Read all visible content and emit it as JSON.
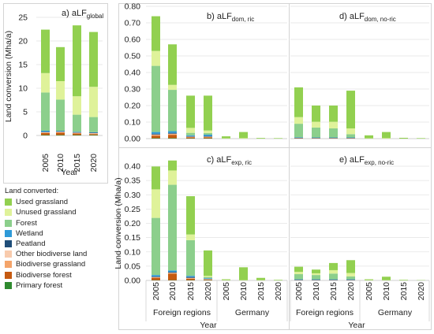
{
  "categories_short": [
    "2005",
    "2010",
    "2015",
    "2020"
  ],
  "colors": {
    "used_grassland": "#92d050",
    "unused_grassland": "#dff29a",
    "forest": "#8ccf8c",
    "wetland": "#2e9ad8",
    "peatland": "#1f4e79",
    "other_biodiverse_land": "#f8cbad",
    "biodiverse_grassland": "#f4a46a",
    "biodiverse_forest": "#c55a11",
    "primary_forest": "#2f8a2f"
  },
  "legend": {
    "title": "Land converted:",
    "items": [
      {
        "key": "used_grassland",
        "label": "Used grassland"
      },
      {
        "key": "unused_grassland",
        "label": "Unused grassland"
      },
      {
        "key": "forest",
        "label": "Forest"
      },
      {
        "key": "wetland",
        "label": "Wetland"
      },
      {
        "key": "peatland",
        "label": "Peatland"
      },
      {
        "key": "other_biodiverse_land",
        "label": "Other biodiverse land"
      },
      {
        "key": "biodiverse_grassland",
        "label": "Biodiverse grassland"
      },
      {
        "key": "biodiverse_forest",
        "label": "Biodiverse forest"
      },
      {
        "key": "primary_forest",
        "label": "Primary forest"
      }
    ]
  },
  "chart_data": [
    {
      "id": "a",
      "type": "bar",
      "stacked": true,
      "title_main": "a) aLF",
      "title_sub": "global",
      "ylabel": "Land conversion (Mha/a)",
      "xlabel": "Year",
      "ylim": [
        0,
        25
      ],
      "yticks": [
        "0",
        "5",
        "10",
        "15",
        "20",
        "25"
      ],
      "categories": [
        "2005",
        "2010",
        "2015",
        "2020"
      ],
      "series": [
        {
          "key": "primary_forest",
          "values": [
            0.1,
            0.1,
            0.1,
            0.1
          ]
        },
        {
          "key": "biodiverse_forest",
          "values": [
            0.4,
            0.5,
            0.3,
            0.2
          ]
        },
        {
          "key": "biodiverse_grassland",
          "values": [
            0.1,
            0.1,
            0.1,
            0.1
          ]
        },
        {
          "key": "other_biodiverse_land",
          "values": [
            0.1,
            0.1,
            0.1,
            0.1
          ]
        },
        {
          "key": "peatland",
          "values": [
            0.1,
            0.1,
            0.1,
            0.1
          ]
        },
        {
          "key": "wetland",
          "values": [
            0.2,
            0.1,
            0.1,
            0.1
          ]
        },
        {
          "key": "forest",
          "values": [
            8.1,
            6.6,
            3.6,
            3.2
          ]
        },
        {
          "key": "unused_grassland",
          "values": [
            4.1,
            3.9,
            3.9,
            6.4
          ]
        },
        {
          "key": "used_grassland",
          "values": [
            9.2,
            7.2,
            15.0,
            11.6
          ]
        }
      ]
    },
    {
      "id": "b",
      "type": "bar",
      "stacked": true,
      "title_main": "b) aLF",
      "title_sub": "dom, ric",
      "ylabel": "",
      "xlabel": "",
      "ylim": [
        0,
        0.8
      ],
      "yticks": [
        "0.00",
        "0.10",
        "0.20",
        "0.30",
        "0.40",
        "0.50",
        "0.60",
        "0.70",
        "0.80"
      ],
      "categories": [
        "Foreign regions 2005",
        "Foreign regions 2010",
        "Foreign regions 2015",
        "Foreign regions 2020",
        "Germany 2005",
        "Germany 2010",
        "Germany 2015",
        "Germany 2020"
      ],
      "series": [
        {
          "key": "primary_forest",
          "values": [
            0.003,
            0.003,
            0.002,
            0.002,
            0,
            0,
            0,
            0
          ]
        },
        {
          "key": "biodiverse_forest",
          "values": [
            0.015,
            0.02,
            0.005,
            0.005,
            0,
            0,
            0,
            0
          ]
        },
        {
          "key": "biodiverse_grassland",
          "values": [
            0.005,
            0.005,
            0.003,
            0.003,
            0,
            0,
            0,
            0
          ]
        },
        {
          "key": "other_biodiverse_land",
          "values": [
            0.002,
            0.002,
            0.002,
            0.002,
            0,
            0,
            0,
            0
          ]
        },
        {
          "key": "peatland",
          "values": [
            0.005,
            0.005,
            0.003,
            0.004,
            0,
            0,
            0,
            0
          ]
        },
        {
          "key": "wetland",
          "values": [
            0.01,
            0.01,
            0.005,
            0.008,
            0,
            0,
            0,
            0
          ]
        },
        {
          "key": "forest",
          "values": [
            0.4,
            0.25,
            0.015,
            0.01,
            0,
            0,
            0,
            0
          ]
        },
        {
          "key": "unused_grassland",
          "values": [
            0.09,
            0.03,
            0.03,
            0.015,
            0.002,
            0.003,
            0,
            0
          ]
        },
        {
          "key": "used_grassland",
          "values": [
            0.21,
            0.245,
            0.195,
            0.211,
            0.012,
            0.037,
            0.004,
            0.003
          ]
        }
      ]
    },
    {
      "id": "c",
      "type": "bar",
      "stacked": true,
      "title_main": "c) aLF",
      "title_sub": "exp, ric",
      "ylabel": "Land conversion (Mha/a)",
      "xlabel": "Year",
      "group_labels": [
        "Foreign regions",
        "Germany"
      ],
      "ylim": [
        0,
        0.4
      ],
      "yticks": [
        "0.00",
        "0.05",
        "0.10",
        "0.15",
        "0.20",
        "0.25",
        "0.30",
        "0.35",
        "0.40"
      ],
      "categories": [
        "Foreign regions 2005",
        "Foreign regions 2010",
        "Foreign regions 2015",
        "Foreign regions 2020",
        "Germany 2005",
        "Germany 2010",
        "Germany 2015",
        "Germany 2020"
      ],
      "series": [
        {
          "key": "primary_forest",
          "values": [
            0.001,
            0.001,
            0.001,
            0.001,
            0,
            0,
            0,
            0
          ]
        },
        {
          "key": "biodiverse_forest",
          "values": [
            0.008,
            0.023,
            0.005,
            0.002,
            0,
            0,
            0,
            0
          ]
        },
        {
          "key": "biodiverse_grassland",
          "values": [
            0.002,
            0.002,
            0.002,
            0.001,
            0,
            0,
            0,
            0
          ]
        },
        {
          "key": "other_biodiverse_land",
          "values": [
            0.001,
            0.001,
            0.001,
            0.001,
            0,
            0,
            0,
            0
          ]
        },
        {
          "key": "peatland",
          "values": [
            0.002,
            0.003,
            0.003,
            0.001,
            0,
            0,
            0,
            0
          ]
        },
        {
          "key": "wetland",
          "values": [
            0.005,
            0.005,
            0.004,
            0.002,
            0,
            0,
            0,
            0
          ]
        },
        {
          "key": "forest",
          "values": [
            0.2,
            0.3,
            0.125,
            0.004,
            0,
            0,
            0,
            0
          ]
        },
        {
          "key": "unused_grassland",
          "values": [
            0.1,
            0.05,
            0.02,
            0.004,
            0.001,
            0.001,
            0.001,
            0
          ]
        },
        {
          "key": "used_grassland",
          "values": [
            0.08,
            0.035,
            0.134,
            0.089,
            0.003,
            0.045,
            0.008,
            0.002
          ]
        }
      ]
    },
    {
      "id": "d",
      "type": "bar",
      "stacked": true,
      "title_main": "d) aLF",
      "title_sub": "dom, no-ric",
      "ylabel": "",
      "xlabel": "",
      "ylim": [
        0,
        0.8
      ],
      "yticks": [],
      "categories": [
        "Foreign regions 2005",
        "Foreign regions 2010",
        "Foreign regions 2015",
        "Foreign regions 2020",
        "Germany 2005",
        "Germany 2010",
        "Germany 2015",
        "Germany 2020"
      ],
      "series": [
        {
          "key": "primary_forest",
          "values": [
            0,
            0,
            0,
            0,
            0,
            0,
            0,
            0
          ]
        },
        {
          "key": "biodiverse_forest",
          "values": [
            0.002,
            0.002,
            0.002,
            0.002,
            0,
            0,
            0,
            0
          ]
        },
        {
          "key": "biodiverse_grassland",
          "values": [
            0.001,
            0.001,
            0.001,
            0.001,
            0,
            0,
            0,
            0
          ]
        },
        {
          "key": "other_biodiverse_land",
          "values": [
            0,
            0,
            0,
            0,
            0,
            0,
            0,
            0
          ]
        },
        {
          "key": "peatland",
          "values": [
            0.002,
            0.001,
            0.001,
            0.001,
            0,
            0,
            0,
            0
          ]
        },
        {
          "key": "wetland",
          "values": [
            0.003,
            0.003,
            0.003,
            0.003,
            0,
            0,
            0,
            0
          ]
        },
        {
          "key": "forest",
          "values": [
            0.082,
            0.06,
            0.055,
            0.02,
            0,
            0,
            0,
            0
          ]
        },
        {
          "key": "unused_grassland",
          "values": [
            0.04,
            0.035,
            0.04,
            0.035,
            0.002,
            0.003,
            0,
            0
          ]
        },
        {
          "key": "used_grassland",
          "values": [
            0.18,
            0.098,
            0.098,
            0.228,
            0.018,
            0.037,
            0.005,
            0.003
          ]
        }
      ]
    },
    {
      "id": "e",
      "type": "bar",
      "stacked": true,
      "title_main": "e) aLF",
      "title_sub": "exp, no-ric",
      "ylabel": "",
      "xlabel": "Year",
      "group_labels": [
        "Foreign regions",
        "Germany"
      ],
      "ylim": [
        0,
        0.4
      ],
      "yticks": [],
      "categories": [
        "Foreign regions 2005",
        "Foreign regions 2010",
        "Foreign regions 2015",
        "Foreign regions 2020",
        "Germany 2005",
        "Germany 2010",
        "Germany 2015",
        "Germany 2020"
      ],
      "series": [
        {
          "key": "primary_forest",
          "values": [
            0,
            0,
            0,
            0,
            0,
            0,
            0,
            0
          ]
        },
        {
          "key": "biodiverse_forest",
          "values": [
            0.001,
            0.001,
            0.001,
            0.001,
            0,
            0,
            0,
            0
          ]
        },
        {
          "key": "biodiverse_grassland",
          "values": [
            0,
            0,
            0,
            0,
            0,
            0,
            0,
            0
          ]
        },
        {
          "key": "other_biodiverse_land",
          "values": [
            0,
            0,
            0,
            0,
            0,
            0,
            0,
            0
          ]
        },
        {
          "key": "peatland",
          "values": [
            0.001,
            0.001,
            0.001,
            0.001,
            0,
            0,
            0,
            0
          ]
        },
        {
          "key": "wetland",
          "values": [
            0.002,
            0.002,
            0.002,
            0.002,
            0,
            0,
            0,
            0
          ]
        },
        {
          "key": "forest",
          "values": [
            0.018,
            0.015,
            0.02,
            0.01,
            0,
            0,
            0,
            0
          ]
        },
        {
          "key": "unused_grassland",
          "values": [
            0.008,
            0.006,
            0.012,
            0.012,
            0.001,
            0.001,
            0,
            0
          ]
        },
        {
          "key": "used_grassland",
          "values": [
            0.018,
            0.013,
            0.025,
            0.045,
            0.003,
            0.012,
            0.002,
            0.001
          ]
        }
      ]
    }
  ]
}
